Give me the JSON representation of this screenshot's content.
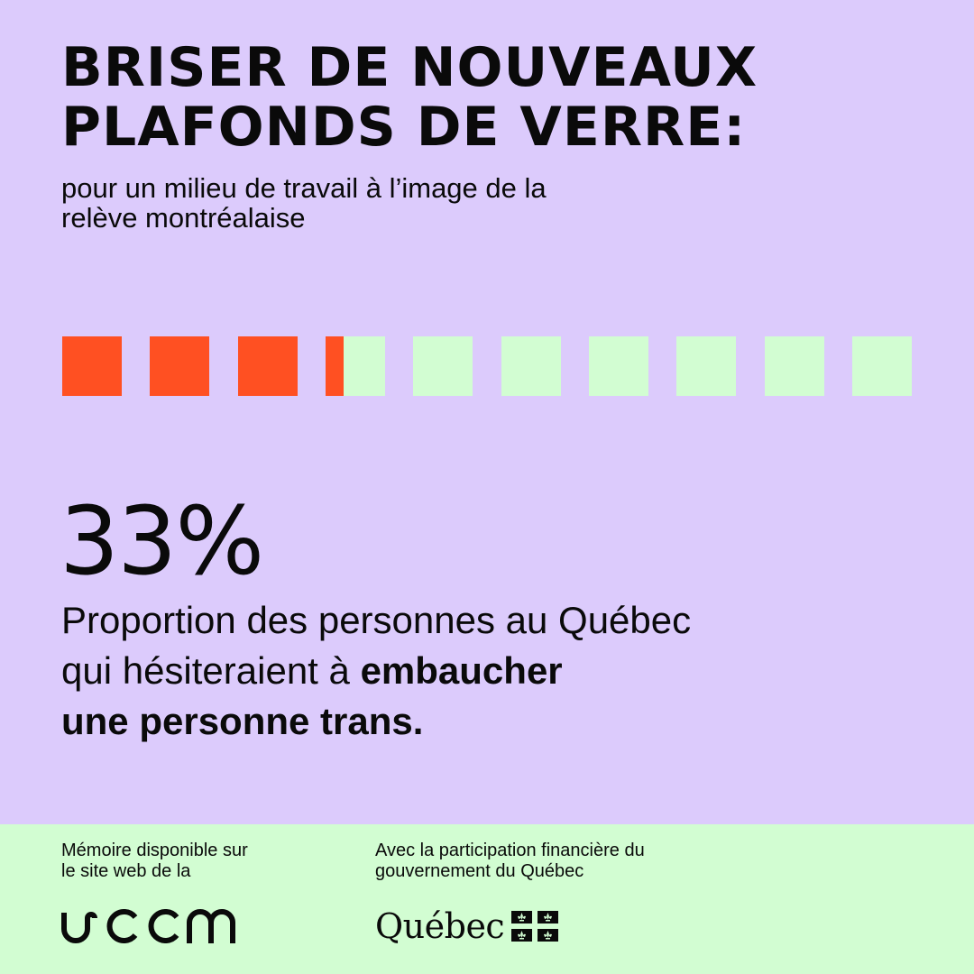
{
  "title": {
    "line1": "BRISER DE NOUVEAUX",
    "line2": "PLAFONDS DE VERRE:"
  },
  "subtitle": {
    "line1": "pour un milieu de travail à  l’image de la",
    "line2": "relève montréalaise"
  },
  "progress": {
    "filled_fraction": 0.33,
    "total_squares": 10,
    "filled_color": "#ff5022",
    "empty_color": "#d2fdd2"
  },
  "stat": {
    "value": "33%",
    "desc_regular_line1": "Proportion des personnes au Québec",
    "desc_regular_line2": "qui hésiteraient à ",
    "desc_bold_line2": "embaucher",
    "desc_bold_line3": "une personne trans."
  },
  "footer": {
    "left_line1": "Mémoire disponible sur",
    "left_line2": "le site web de la",
    "logo_left": "JCCM",
    "right_line1": "Avec la participation financière du",
    "right_line2": "gouvernement du Québec",
    "logo_right": "Québec",
    "flag_icon": "fleurdelise-flag-icon"
  },
  "colors": {
    "background": "#dccbfc",
    "footer": "#d2fdd2",
    "accent": "#ff5022",
    "text": "#0a0a0a"
  }
}
